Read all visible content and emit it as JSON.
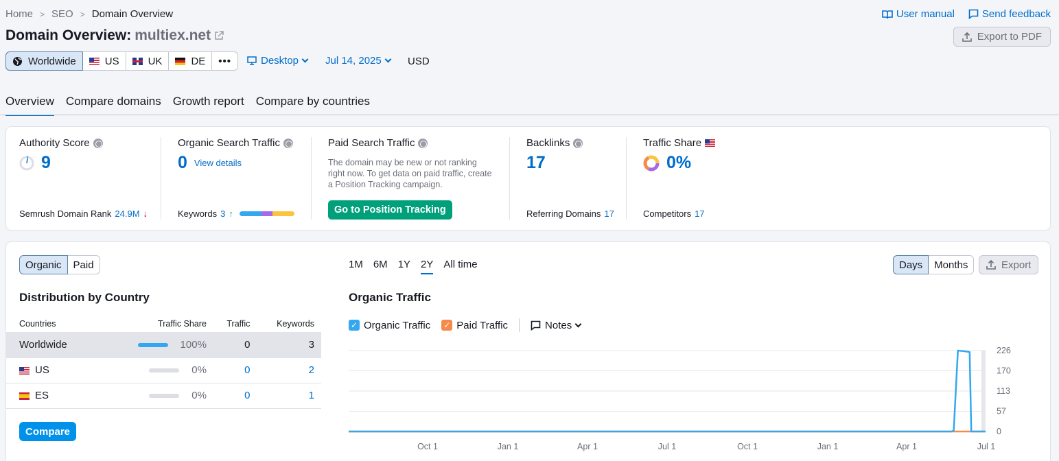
{
  "breadcrumb": [
    "Home",
    "SEO",
    "Domain Overview"
  ],
  "links": {
    "manual": "User manual",
    "feedback": "Send feedback"
  },
  "title": {
    "prefix": "Domain Overview:",
    "domain": "multiex.net"
  },
  "export_pdf": "Export to PDF",
  "regions": [
    "Worldwide",
    "US",
    "UK",
    "DE"
  ],
  "device": "Desktop",
  "date": "Jul 14, 2025",
  "currency": "USD",
  "tabs": [
    "Overview",
    "Compare domains",
    "Growth report",
    "Compare by countries"
  ],
  "metrics": {
    "authority": {
      "label": "Authority Score",
      "value": "9",
      "sub_label": "Semrush Domain Rank",
      "sub_value": "24.9M"
    },
    "organic": {
      "label": "Organic Search Traffic",
      "value": "0",
      "link": "View details",
      "sub_label": "Keywords",
      "sub_value": "3"
    },
    "paid": {
      "label": "Paid Search Traffic",
      "desc": "The domain may be new or not ranking right now. To get data on paid traffic, create a Position Tracking campaign.",
      "button": "Go to Position Tracking"
    },
    "backlinks": {
      "label": "Backlinks",
      "value": "17",
      "sub_label": "Referring Domains",
      "sub_value": "17"
    },
    "share": {
      "label": "Traffic Share",
      "value": "0%",
      "sub_label": "Competitors",
      "sub_value": "17"
    }
  },
  "mode": [
    "Organic",
    "Paid"
  ],
  "periods": [
    "1M",
    "6M",
    "1Y",
    "2Y",
    "All time"
  ],
  "granularity": [
    "Days",
    "Months"
  ],
  "export": "Export",
  "distribution": {
    "title": "Distribution by Country",
    "headers": [
      "Countries",
      "Traffic Share",
      "Traffic",
      "Keywords"
    ],
    "rows": [
      {
        "country": "Worldwide",
        "share": "100%",
        "traffic": "0",
        "keywords": "3"
      },
      {
        "country": "US",
        "share": "0%",
        "traffic": "0",
        "keywords": "2"
      },
      {
        "country": "ES",
        "share": "0%",
        "traffic": "0",
        "keywords": "1"
      }
    ],
    "compare": "Compare"
  },
  "traffic_chart_title": "Organic Traffic",
  "legend": {
    "organic": "Organic Traffic",
    "paid": "Paid Traffic",
    "notes": "Notes"
  },
  "colors": {
    "accent": "#006dca",
    "organic": "#33a8f0",
    "paid": "#f58a4b",
    "green": "#00a17a"
  },
  "chart_data": {
    "type": "line",
    "x_ticks": [
      "Oct 1",
      "Jan 1",
      "Apr 1",
      "Jul 1",
      "Oct 1",
      "Jan 1",
      "Apr 1",
      "Jul 1"
    ],
    "y_ticks": [
      "226",
      "170",
      "113",
      "57",
      "0"
    ],
    "ylim": [
      0,
      226
    ],
    "series": [
      {
        "name": "Organic Traffic",
        "points": [
          [
            0,
            0
          ],
          [
            720,
            0
          ],
          [
            722,
            3
          ],
          [
            727,
            226
          ],
          [
            735,
            224
          ],
          [
            741,
            222
          ],
          [
            743,
            0
          ],
          [
            760,
            0
          ]
        ]
      },
      {
        "name": "Paid Traffic",
        "points": [
          [
            0,
            0
          ],
          [
            760,
            0
          ]
        ]
      }
    ],
    "x_range": [
      0,
      760
    ]
  }
}
